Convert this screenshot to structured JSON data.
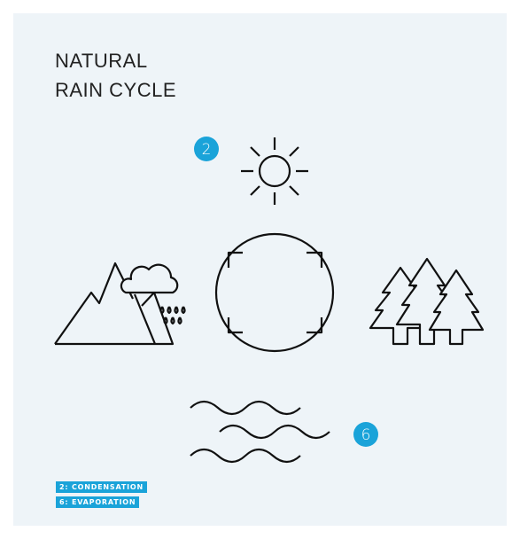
{
  "title": [
    "NATURAL",
    "RAIN CYCLE"
  ],
  "badges": [
    {
      "label": "2"
    },
    {
      "label": "6"
    }
  ],
  "legend": [
    "2: CONDENSATION",
    "6: EVAPORATION"
  ]
}
